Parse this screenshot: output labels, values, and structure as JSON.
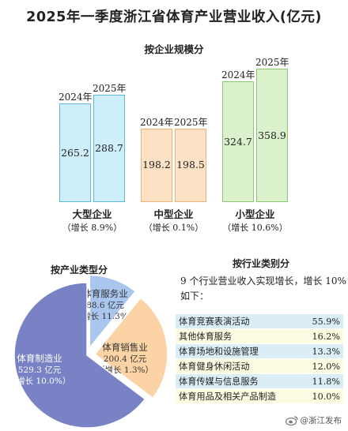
{
  "title": "2025年一季度浙江省体育产业营业收入(亿元)",
  "chart_data": [
    {
      "type": "bar",
      "title": "按企业规模分",
      "years": [
        "2024年",
        "2025年"
      ],
      "groups": [
        {
          "name": "大型企业",
          "growth": "（增长 8.9%）",
          "values": [
            265.2,
            288.7
          ],
          "color": "#cdeefa"
        },
        {
          "name": "中型企业",
          "growth": "（增长 0.1%）",
          "values": [
            198.2,
            198.5
          ],
          "color": "#fde1c4"
        },
        {
          "name": "小型企业",
          "growth": "（增长 10.6%）",
          "values": [
            324.7,
            358.9
          ],
          "color": "#dbf1cc"
        }
      ]
    },
    {
      "type": "pie",
      "title": "按产业类型分",
      "slices": [
        {
          "name": "体育服务业",
          "value_label": "88.6 亿元",
          "growth": "（增长 11.3%）",
          "value": 88.6,
          "color": "#a8c6ee"
        },
        {
          "name": "体育销售业",
          "value_label": "200.4 亿元",
          "growth": "（增长 1.3%）",
          "value": 200.4,
          "color": "#fbd3a4"
        },
        {
          "name": "体育制造业",
          "value_label": "529.3 亿元",
          "growth": "（增长 10.0%）",
          "value": 529.3,
          "color": "#7a82c6"
        }
      ]
    },
    {
      "type": "table",
      "title": "按行业类别分",
      "description": "9 个行业营业收入实现增长，增长 10% 如下：",
      "rows": [
        {
          "name": "体育竞赛表演活动",
          "value": "55.9%"
        },
        {
          "name": "其他体育服务",
          "value": "16.2%"
        },
        {
          "name": "体育场地和设施管理",
          "value": "13.3%"
        },
        {
          "name": "体育健身休闲活动",
          "value": "12.0%"
        },
        {
          "name": "体育传媒与信息服务",
          "value": "11.8%"
        },
        {
          "name": "体育用品及相关产品制造",
          "value": "10.0%"
        }
      ]
    }
  ],
  "watermark": "@浙江发布"
}
